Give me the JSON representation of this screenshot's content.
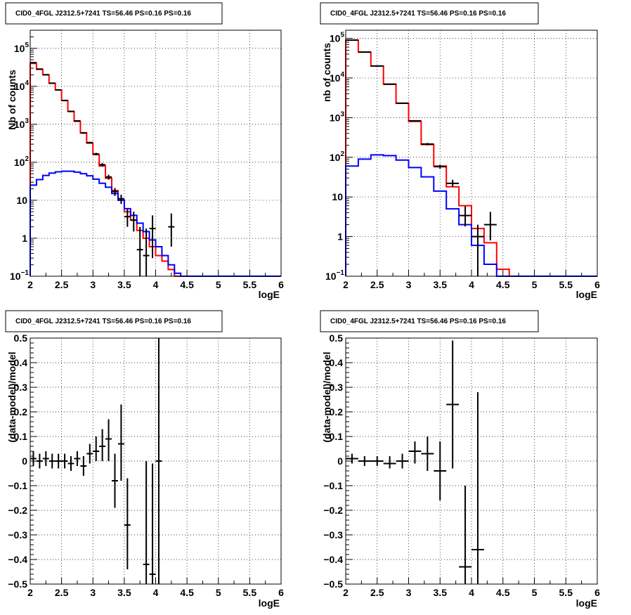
{
  "chart_data": [
    {
      "id": "p1",
      "type": "line",
      "title": "CID0_4FGL J2312.5+7241 TS=56.46 PS=0.16 PS=0.16",
      "xlabel": "logE",
      "ylabel": "Nb of counts",
      "xlim": [
        2,
        6
      ],
      "ylim": [
        0.1,
        300000
      ],
      "yscale": "log",
      "grid": true,
      "xticks": [
        "2",
        "2.5",
        "3",
        "3.5",
        "4",
        "4.5",
        "5",
        "5.5",
        "6"
      ],
      "yticks": [
        {
          "v": 0.1,
          "label": "10",
          "exp": "−1"
        },
        {
          "v": 1,
          "label": "1"
        },
        {
          "v": 10,
          "label": "10"
        },
        {
          "v": 100,
          "label": "10",
          "exp": "2"
        },
        {
          "v": 1000,
          "label": "10",
          "exp": "3"
        },
        {
          "v": 10000,
          "label": "10",
          "exp": "4"
        },
        {
          "v": 100000,
          "label": "10",
          "exp": "5"
        }
      ],
      "bin_edges": [
        2.0,
        2.1,
        2.2,
        2.3,
        2.4,
        2.5,
        2.6,
        2.7,
        2.8,
        2.9,
        3.0,
        3.1,
        3.2,
        3.3,
        3.4,
        3.5,
        3.6,
        3.7,
        3.8,
        3.9,
        4.0,
        4.1,
        4.2,
        4.3,
        4.4,
        4.5,
        4.6,
        4.7,
        4.8,
        4.9,
        5.0,
        5.1,
        5.2,
        5.3,
        5.4,
        5.5,
        5.6,
        5.7,
        5.8,
        5.9,
        6.0
      ],
      "series": [
        {
          "color": "#ff0000",
          "kind": "step",
          "values": [
            40000,
            28000,
            20000,
            12000,
            8000,
            4200,
            2200,
            1200,
            600,
            320,
            160,
            80,
            38,
            18,
            10,
            5,
            3,
            1.6,
            1.0,
            0.6,
            0.35,
            0.25,
            0.15,
            0.1,
            0.1,
            0.1,
            0.1,
            0.1,
            0.1,
            0.1,
            0.1,
            0.1,
            0.1,
            0.1,
            0.1,
            0.1,
            0.1,
            0.1,
            0.1,
            0.1
          ]
        },
        {
          "color": "#0000ff",
          "kind": "step",
          "values": [
            25,
            35,
            45,
            52,
            56,
            58,
            58,
            55,
            50,
            44,
            36,
            28,
            22,
            15,
            10,
            6,
            4,
            2.5,
            1.5,
            0.9,
            0.6,
            0.35,
            0.2,
            0.12,
            0.1,
            0.1,
            0.1,
            0.1,
            0.1,
            0.1,
            0.1,
            0.1,
            0.1,
            0.1,
            0.1,
            0.1,
            0.1,
            0.1,
            0.1,
            0.1
          ]
        },
        {
          "color": "#000000",
          "kind": "errorbar",
          "points": [
            {
              "x": 2.05,
              "xerr": 0.05,
              "y": 42000,
              "lo": 41500,
              "hi": 42500
            },
            {
              "x": 2.15,
              "xerr": 0.05,
              "y": 28500,
              "lo": 28100,
              "hi": 28900
            },
            {
              "x": 2.25,
              "xerr": 0.05,
              "y": 20200,
              "lo": 19900,
              "hi": 20500
            },
            {
              "x": 2.35,
              "xerr": 0.05,
              "y": 12100,
              "lo": 11900,
              "hi": 12300
            },
            {
              "x": 2.45,
              "xerr": 0.05,
              "y": 8050,
              "lo": 7900,
              "hi": 8200
            },
            {
              "x": 2.55,
              "xerr": 0.05,
              "y": 4250,
              "lo": 4150,
              "hi": 4350
            },
            {
              "x": 2.65,
              "xerr": 0.05,
              "y": 2180,
              "lo": 2130,
              "hi": 2230
            },
            {
              "x": 2.75,
              "xerr": 0.05,
              "y": 1230,
              "lo": 1190,
              "hi": 1270
            },
            {
              "x": 2.85,
              "xerr": 0.05,
              "y": 590,
              "lo": 565,
              "hi": 615
            },
            {
              "x": 2.95,
              "xerr": 0.05,
              "y": 330,
              "lo": 312,
              "hi": 348
            },
            {
              "x": 3.05,
              "xerr": 0.05,
              "y": 165,
              "lo": 152,
              "hi": 178
            },
            {
              "x": 3.15,
              "xerr": 0.05,
              "y": 86,
              "lo": 77,
              "hi": 95
            },
            {
              "x": 3.25,
              "xerr": 0.05,
              "y": 41,
              "lo": 35,
              "hi": 47
            },
            {
              "x": 3.35,
              "xerr": 0.05,
              "y": 17,
              "lo": 13,
              "hi": 21
            },
            {
              "x": 3.45,
              "xerr": 0.05,
              "y": 11,
              "lo": 8,
              "hi": 14
            },
            {
              "x": 3.55,
              "xerr": 0.05,
              "y": 3.7,
              "lo": 2.0,
              "hi": 5.8
            },
            {
              "x": 3.65,
              "xerr": 0.05,
              "y": 3.0,
              "lo": 1.5,
              "hi": 5.0
            },
            {
              "x": 3.75,
              "xerr": 0.05,
              "y": 0.5,
              "lo": 0.1,
              "hi": 2.0
            },
            {
              "x": 3.85,
              "xerr": 0.05,
              "y": 0.35,
              "lo": 0.1,
              "hi": 1.8
            },
            {
              "x": 3.95,
              "xerr": 0.05,
              "y": 1.8,
              "lo": 0.3,
              "hi": 4.0
            },
            {
              "x": 4.25,
              "xerr": 0.05,
              "y": 2.0,
              "lo": 0.6,
              "hi": 4.5
            }
          ]
        }
      ]
    },
    {
      "id": "p2",
      "type": "line",
      "title": "CID0_4FGL J2312.5+7241 TS=56.46 PS=0.16 PS=0.16",
      "xlabel": "logE",
      "ylabel": "nb of counts",
      "xlim": [
        2,
        6
      ],
      "ylim": [
        0.1,
        160000
      ],
      "yscale": "log",
      "grid": true,
      "xticks": [
        "2",
        "2.5",
        "3",
        "3.5",
        "4",
        "4.5",
        "5",
        "5.5",
        "6"
      ],
      "yticks": [
        {
          "v": 0.1,
          "label": "10",
          "exp": "−1"
        },
        {
          "v": 1,
          "label": "1"
        },
        {
          "v": 10,
          "label": "10"
        },
        {
          "v": 100,
          "label": "10",
          "exp": "2"
        },
        {
          "v": 1000,
          "label": "10",
          "exp": "3"
        },
        {
          "v": 10000,
          "label": "10",
          "exp": "4"
        },
        {
          "v": 100000,
          "label": "10",
          "exp": "5"
        }
      ],
      "bin_edges": [
        2.0,
        2.2,
        2.4,
        2.6,
        2.8,
        3.0,
        3.2,
        3.4,
        3.6,
        3.8,
        4.0,
        4.2,
        4.4,
        4.6,
        4.8,
        5.0,
        5.2,
        5.4,
        5.6,
        5.8,
        6.0
      ],
      "series": [
        {
          "color": "#ff0000",
          "kind": "step",
          "values": [
            90000,
            45000,
            20000,
            7000,
            2300,
            800,
            210,
            60,
            18,
            6,
            1.6,
            0.7,
            0.15,
            0.1,
            0.1,
            0.1,
            0.1,
            0.1,
            0.1,
            0.1
          ]
        },
        {
          "color": "#0000ff",
          "kind": "step",
          "values": [
            60,
            90,
            115,
            110,
            85,
            55,
            32,
            14,
            5,
            2,
            0.6,
            0.2,
            0.1,
            0.1,
            0.1,
            0.1,
            0.1,
            0.1,
            0.1,
            0.1
          ]
        },
        {
          "color": "#000000",
          "kind": "errorbar",
          "points": [
            {
              "x": 2.1,
              "xerr": 0.1,
              "y": 90500,
              "lo": 90000,
              "hi": 91000
            },
            {
              "x": 2.3,
              "xerr": 0.1,
              "y": 45000,
              "lo": 44700,
              "hi": 45300
            },
            {
              "x": 2.5,
              "xerr": 0.1,
              "y": 20100,
              "lo": 19900,
              "hi": 20300
            },
            {
              "x": 2.7,
              "xerr": 0.1,
              "y": 6950,
              "lo": 6850,
              "hi": 7050
            },
            {
              "x": 2.9,
              "xerr": 0.1,
              "y": 2310,
              "lo": 2260,
              "hi": 2360
            },
            {
              "x": 3.1,
              "xerr": 0.1,
              "y": 830,
              "lo": 800,
              "hi": 860
            },
            {
              "x": 3.3,
              "xerr": 0.1,
              "y": 215,
              "lo": 200,
              "hi": 230
            },
            {
              "x": 3.5,
              "xerr": 0.1,
              "y": 58,
              "lo": 51,
              "hi": 65
            },
            {
              "x": 3.7,
              "xerr": 0.1,
              "y": 22,
              "lo": 18,
              "hi": 27
            },
            {
              "x": 3.9,
              "xerr": 0.1,
              "y": 3.4,
              "lo": 1.8,
              "hi": 5.8
            },
            {
              "x": 4.1,
              "xerr": 0.1,
              "y": 1.0,
              "lo": 0.1,
              "hi": 2.0
            },
            {
              "x": 4.3,
              "xerr": 0.1,
              "y": 2.0,
              "lo": 0.8,
              "hi": 4.2
            }
          ]
        }
      ]
    },
    {
      "id": "p3",
      "type": "scatter",
      "title": "CID0_4FGL J2312.5+7241 TS=56.46 PS=0.16 PS=0.16",
      "xlabel": "logE",
      "ylabel": "(data-model)/model",
      "xlim": [
        2,
        6
      ],
      "ylim": [
        -0.5,
        0.5
      ],
      "yscale": "linear",
      "grid": true,
      "xticks": [
        "2",
        "2.5",
        "3",
        "3.5",
        "4",
        "4.5",
        "5",
        "5.5",
        "6"
      ],
      "yticks": [
        {
          "v": -0.5,
          "label": "−0.5"
        },
        {
          "v": -0.4,
          "label": "−0.4"
        },
        {
          "v": -0.3,
          "label": "−0.3"
        },
        {
          "v": -0.2,
          "label": "−0.2"
        },
        {
          "v": -0.1,
          "label": "−0.1"
        },
        {
          "v": 0,
          "label": "0"
        },
        {
          "v": 0.1,
          "label": "0.1"
        },
        {
          "v": 0.2,
          "label": "0.2"
        },
        {
          "v": 0.3,
          "label": "0.3"
        },
        {
          "v": 0.4,
          "label": "0.4"
        },
        {
          "v": 0.5,
          "label": "0.5"
        }
      ],
      "series": [
        {
          "color": "#000000",
          "kind": "errorbar",
          "points": [
            {
              "x": 2.05,
              "xerr": 0.05,
              "y": 0.01,
              "lo": -0.02,
              "hi": 0.04
            },
            {
              "x": 2.15,
              "xerr": 0.05,
              "y": 0.0,
              "lo": -0.03,
              "hi": 0.03
            },
            {
              "x": 2.25,
              "xerr": 0.05,
              "y": 0.01,
              "lo": -0.02,
              "hi": 0.04
            },
            {
              "x": 2.35,
              "xerr": 0.05,
              "y": 0.0,
              "lo": -0.03,
              "hi": 0.03
            },
            {
              "x": 2.45,
              "xerr": 0.05,
              "y": 0.0,
              "lo": -0.03,
              "hi": 0.03
            },
            {
              "x": 2.55,
              "xerr": 0.05,
              "y": 0.0,
              "lo": -0.03,
              "hi": 0.03
            },
            {
              "x": 2.65,
              "xerr": 0.05,
              "y": -0.01,
              "lo": -0.04,
              "hi": 0.02
            },
            {
              "x": 2.75,
              "xerr": 0.05,
              "y": 0.01,
              "lo": -0.02,
              "hi": 0.04
            },
            {
              "x": 2.85,
              "xerr": 0.05,
              "y": -0.02,
              "lo": -0.06,
              "hi": 0.02
            },
            {
              "x": 2.95,
              "xerr": 0.05,
              "y": 0.03,
              "lo": -0.01,
              "hi": 0.07
            },
            {
              "x": 3.05,
              "xerr": 0.05,
              "y": 0.04,
              "lo": 0.0,
              "hi": 0.1
            },
            {
              "x": 3.15,
              "xerr": 0.05,
              "y": 0.06,
              "lo": 0.0,
              "hi": 0.13
            },
            {
              "x": 3.25,
              "xerr": 0.05,
              "y": 0.09,
              "lo": 0.0,
              "hi": 0.17
            },
            {
              "x": 3.35,
              "xerr": 0.05,
              "y": -0.08,
              "lo": -0.19,
              "hi": 0.03
            },
            {
              "x": 3.45,
              "xerr": 0.05,
              "y": 0.07,
              "lo": -0.08,
              "hi": 0.23
            },
            {
              "x": 3.55,
              "xerr": 0.05,
              "y": -0.26,
              "lo": -0.44,
              "hi": -0.07
            },
            {
              "x": 3.85,
              "xerr": 0.05,
              "y": -0.42,
              "lo": -0.5,
              "hi": 0.0
            },
            {
              "x": 3.95,
              "xerr": 0.05,
              "y": -0.46,
              "lo": -0.5,
              "hi": -0.01
            },
            {
              "x": 4.05,
              "xerr": 0.05,
              "y": 0.0,
              "lo": -0.5,
              "hi": 0.5
            }
          ]
        }
      ]
    },
    {
      "id": "p4",
      "type": "scatter",
      "title": "CID0_4FGL J2312.5+7241 TS=56.46 PS=0.16 PS=0.16",
      "xlabel": "logE",
      "ylabel": "(data-model)/model",
      "xlim": [
        2,
        6
      ],
      "ylim": [
        -0.5,
        0.5
      ],
      "yscale": "linear",
      "grid": true,
      "xticks": [
        "2",
        "2.5",
        "3",
        "3.5",
        "4",
        "4.5",
        "5",
        "5.5",
        "6"
      ],
      "yticks": [
        {
          "v": -0.5,
          "label": "−0.5"
        },
        {
          "v": -0.4,
          "label": "−0.4"
        },
        {
          "v": -0.3,
          "label": "−0.3"
        },
        {
          "v": -0.2,
          "label": "−0.2"
        },
        {
          "v": -0.1,
          "label": "−0.1"
        },
        {
          "v": 0,
          "label": "0"
        },
        {
          "v": 0.1,
          "label": "0.1"
        },
        {
          "v": 0.2,
          "label": "0.2"
        },
        {
          "v": 0.3,
          "label": "0.3"
        },
        {
          "v": 0.4,
          "label": "0.4"
        },
        {
          "v": 0.5,
          "label": "0.5"
        }
      ],
      "series": [
        {
          "color": "#000000",
          "kind": "errorbar",
          "points": [
            {
              "x": 2.1,
              "xerr": 0.1,
              "y": 0.01,
              "lo": -0.01,
              "hi": 0.03
            },
            {
              "x": 2.3,
              "xerr": 0.1,
              "y": 0.0,
              "lo": -0.02,
              "hi": 0.02
            },
            {
              "x": 2.5,
              "xerr": 0.1,
              "y": 0.0,
              "lo": -0.02,
              "hi": 0.02
            },
            {
              "x": 2.7,
              "xerr": 0.1,
              "y": -0.01,
              "lo": -0.03,
              "hi": 0.02
            },
            {
              "x": 2.9,
              "xerr": 0.1,
              "y": 0.0,
              "lo": -0.03,
              "hi": 0.03
            },
            {
              "x": 3.1,
              "xerr": 0.1,
              "y": 0.04,
              "lo": -0.01,
              "hi": 0.08
            },
            {
              "x": 3.3,
              "xerr": 0.1,
              "y": 0.03,
              "lo": -0.04,
              "hi": 0.1
            },
            {
              "x": 3.5,
              "xerr": 0.1,
              "y": -0.04,
              "lo": -0.16,
              "hi": 0.08
            },
            {
              "x": 3.7,
              "xerr": 0.1,
              "y": 0.23,
              "lo": -0.03,
              "hi": 0.49
            },
            {
              "x": 3.9,
              "xerr": 0.1,
              "y": -0.43,
              "lo": -0.5,
              "hi": -0.1
            },
            {
              "x": 4.1,
              "xerr": 0.1,
              "y": -0.36,
              "lo": -0.5,
              "hi": 0.28
            }
          ]
        }
      ]
    }
  ]
}
